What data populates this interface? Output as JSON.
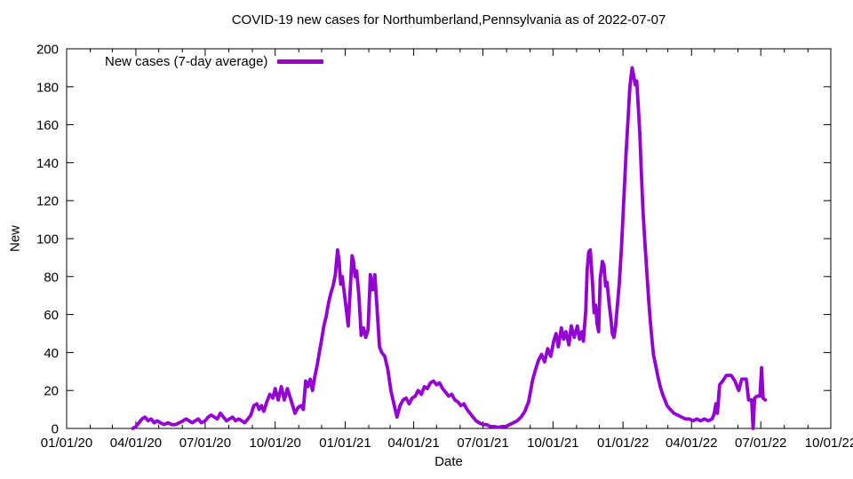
{
  "title": "COVID-19 new cases for Northumberland,Pennsylvania as of 2022-07-07",
  "legend": {
    "label": "New cases (7-day average)"
  },
  "axes": {
    "x_label": "Date",
    "y_label": "New"
  },
  "colors": {
    "line": "#9400d3",
    "axis": "#000000",
    "background": "#ffffff",
    "text": "#000000"
  },
  "chart_data": {
    "type": "line",
    "title": "COVID-19 new cases for Northumberland,Pennsylvania as of 2022-07-07",
    "xlabel": "Date",
    "ylabel": "New",
    "x_range": [
      "2020-01-01",
      "2022-10-01"
    ],
    "ylim": [
      0,
      200
    ],
    "y_tick_step": 20,
    "y_tick_labels": [
      "0",
      "20",
      "40",
      "60",
      "80",
      "100",
      "120",
      "140",
      "160",
      "180",
      "200"
    ],
    "x_major_ticks": [
      {
        "date": "2020-01-01",
        "label": "01/01/20"
      },
      {
        "date": "2020-04-01",
        "label": "04/01/20"
      },
      {
        "date": "2020-07-01",
        "label": "07/01/20"
      },
      {
        "date": "2020-10-01",
        "label": "10/01/20"
      },
      {
        "date": "2021-01-01",
        "label": "01/01/21"
      },
      {
        "date": "2021-04-01",
        "label": "04/01/21"
      },
      {
        "date": "2021-07-01",
        "label": "07/01/21"
      },
      {
        "date": "2021-10-01",
        "label": "10/01/21"
      },
      {
        "date": "2022-01-01",
        "label": "01/01/22"
      },
      {
        "date": "2022-04-01",
        "label": "04/01/22"
      },
      {
        "date": "2022-07-01",
        "label": "07/01/22"
      },
      {
        "date": "2022-10-01",
        "label": "10/01/22"
      }
    ],
    "x_minor_tick_interval": "month",
    "grid": false,
    "legend_position": "top-left-inside",
    "series": [
      {
        "name": "New cases (7-day average)",
        "color": "#9400d3",
        "points": [
          [
            "2020-03-28",
            0
          ],
          [
            "2020-04-01",
            1
          ],
          [
            "2020-04-05",
            3
          ],
          [
            "2020-04-09",
            5
          ],
          [
            "2020-04-13",
            6
          ],
          [
            "2020-04-17",
            4
          ],
          [
            "2020-04-21",
            5
          ],
          [
            "2020-04-25",
            3
          ],
          [
            "2020-04-29",
            4
          ],
          [
            "2020-05-03",
            3
          ],
          [
            "2020-05-08",
            2
          ],
          [
            "2020-05-13",
            3
          ],
          [
            "2020-05-18",
            2
          ],
          [
            "2020-05-23",
            2
          ],
          [
            "2020-05-28",
            3
          ],
          [
            "2020-06-02",
            4
          ],
          [
            "2020-06-06",
            5
          ],
          [
            "2020-06-10",
            4
          ],
          [
            "2020-06-14",
            3
          ],
          [
            "2020-06-18",
            4
          ],
          [
            "2020-06-22",
            5
          ],
          [
            "2020-06-26",
            3
          ],
          [
            "2020-07-01",
            4
          ],
          [
            "2020-07-05",
            6
          ],
          [
            "2020-07-09",
            7
          ],
          [
            "2020-07-13",
            6
          ],
          [
            "2020-07-17",
            5
          ],
          [
            "2020-07-21",
            8
          ],
          [
            "2020-07-25",
            6
          ],
          [
            "2020-07-29",
            4
          ],
          [
            "2020-08-02",
            5
          ],
          [
            "2020-08-06",
            6
          ],
          [
            "2020-08-10",
            4
          ],
          [
            "2020-08-14",
            5
          ],
          [
            "2020-08-18",
            4
          ],
          [
            "2020-08-22",
            3
          ],
          [
            "2020-08-26",
            5
          ],
          [
            "2020-08-30",
            7
          ],
          [
            "2020-09-03",
            12
          ],
          [
            "2020-09-07",
            13
          ],
          [
            "2020-09-10",
            10
          ],
          [
            "2020-09-13",
            12
          ],
          [
            "2020-09-16",
            9
          ],
          [
            "2020-09-20",
            14
          ],
          [
            "2020-09-24",
            18
          ],
          [
            "2020-09-28",
            16
          ],
          [
            "2020-10-01",
            21
          ],
          [
            "2020-10-05",
            15
          ],
          [
            "2020-10-09",
            22
          ],
          [
            "2020-10-13",
            15
          ],
          [
            "2020-10-17",
            21
          ],
          [
            "2020-10-21",
            16
          ],
          [
            "2020-10-24",
            12
          ],
          [
            "2020-10-27",
            8
          ],
          [
            "2020-10-31",
            11
          ],
          [
            "2020-11-04",
            12
          ],
          [
            "2020-11-07",
            10
          ],
          [
            "2020-11-10",
            25
          ],
          [
            "2020-11-13",
            22
          ],
          [
            "2020-11-16",
            26
          ],
          [
            "2020-11-19",
            20
          ],
          [
            "2020-11-22",
            27
          ],
          [
            "2020-11-25",
            33
          ],
          [
            "2020-11-28",
            40
          ],
          [
            "2020-12-01",
            47
          ],
          [
            "2020-12-04",
            54
          ],
          [
            "2020-12-07",
            59
          ],
          [
            "2020-12-10",
            66
          ],
          [
            "2020-12-13",
            71
          ],
          [
            "2020-12-16",
            75
          ],
          [
            "2020-12-19",
            81
          ],
          [
            "2020-12-22",
            94
          ],
          [
            "2020-12-24",
            88
          ],
          [
            "2020-12-26",
            76
          ],
          [
            "2020-12-28",
            80
          ],
          [
            "2020-12-31",
            71
          ],
          [
            "2021-01-02",
            64
          ],
          [
            "2021-01-05",
            54
          ],
          [
            "2021-01-08",
            76
          ],
          [
            "2021-01-10",
            91
          ],
          [
            "2021-01-12",
            88
          ],
          [
            "2021-01-14",
            80
          ],
          [
            "2021-01-16",
            83
          ],
          [
            "2021-01-19",
            70
          ],
          [
            "2021-01-22",
            49
          ],
          [
            "2021-01-25",
            53
          ],
          [
            "2021-01-28",
            48
          ],
          [
            "2021-01-31",
            52
          ],
          [
            "2021-02-03",
            81
          ],
          [
            "2021-02-06",
            73
          ],
          [
            "2021-02-09",
            81
          ],
          [
            "2021-02-12",
            62
          ],
          [
            "2021-02-15",
            43
          ],
          [
            "2021-02-18",
            40
          ],
          [
            "2021-02-22",
            38
          ],
          [
            "2021-02-26",
            31
          ],
          [
            "2021-03-02",
            20
          ],
          [
            "2021-03-06",
            13
          ],
          [
            "2021-03-10",
            6
          ],
          [
            "2021-03-14",
            12
          ],
          [
            "2021-03-18",
            15
          ],
          [
            "2021-03-22",
            16
          ],
          [
            "2021-03-26",
            13
          ],
          [
            "2021-03-30",
            16
          ],
          [
            "2021-04-03",
            17
          ],
          [
            "2021-04-07",
            20
          ],
          [
            "2021-04-11",
            18
          ],
          [
            "2021-04-15",
            22
          ],
          [
            "2021-04-19",
            21
          ],
          [
            "2021-04-23",
            24
          ],
          [
            "2021-04-27",
            25
          ],
          [
            "2021-05-01",
            23
          ],
          [
            "2021-05-05",
            24
          ],
          [
            "2021-05-09",
            21
          ],
          [
            "2021-05-13",
            19
          ],
          [
            "2021-05-17",
            17
          ],
          [
            "2021-05-21",
            18
          ],
          [
            "2021-05-25",
            15
          ],
          [
            "2021-05-29",
            14
          ],
          [
            "2021-06-02",
            12
          ],
          [
            "2021-06-06",
            13
          ],
          [
            "2021-06-10",
            10
          ],
          [
            "2021-06-14",
            8
          ],
          [
            "2021-06-18",
            6
          ],
          [
            "2021-06-22",
            4
          ],
          [
            "2021-06-26",
            3
          ],
          [
            "2021-07-01",
            2
          ],
          [
            "2021-07-06",
            2
          ],
          [
            "2021-07-11",
            1
          ],
          [
            "2021-07-16",
            1
          ],
          [
            "2021-07-21",
            0.5
          ],
          [
            "2021-07-26",
            1
          ],
          [
            "2021-07-31",
            1
          ],
          [
            "2021-08-05",
            2
          ],
          [
            "2021-08-10",
            3
          ],
          [
            "2021-08-15",
            4
          ],
          [
            "2021-08-20",
            6
          ],
          [
            "2021-08-25",
            9
          ],
          [
            "2021-08-30",
            14
          ],
          [
            "2021-09-04",
            25
          ],
          [
            "2021-09-08",
            31
          ],
          [
            "2021-09-12",
            36
          ],
          [
            "2021-09-16",
            39
          ],
          [
            "2021-09-20",
            35
          ],
          [
            "2021-09-24",
            42
          ],
          [
            "2021-09-28",
            38
          ],
          [
            "2021-10-02",
            46
          ],
          [
            "2021-10-05",
            50
          ],
          [
            "2021-10-08",
            43
          ],
          [
            "2021-10-12",
            53
          ],
          [
            "2021-10-15",
            47
          ],
          [
            "2021-10-18",
            51
          ],
          [
            "2021-10-22",
            44
          ],
          [
            "2021-10-25",
            54
          ],
          [
            "2021-10-29",
            48
          ],
          [
            "2021-11-02",
            54
          ],
          [
            "2021-11-05",
            47
          ],
          [
            "2021-11-08",
            51
          ],
          [
            "2021-11-10",
            46
          ],
          [
            "2021-11-13",
            62
          ],
          [
            "2021-11-15",
            84
          ],
          [
            "2021-11-17",
            93
          ],
          [
            "2021-11-19",
            94
          ],
          [
            "2021-11-22",
            76
          ],
          [
            "2021-11-24",
            61
          ],
          [
            "2021-11-26",
            65
          ],
          [
            "2021-11-28",
            55
          ],
          [
            "2021-11-30",
            51
          ],
          [
            "2021-12-02",
            79
          ],
          [
            "2021-12-05",
            88
          ],
          [
            "2021-12-07",
            86
          ],
          [
            "2021-12-09",
            75
          ],
          [
            "2021-12-11",
            77
          ],
          [
            "2021-12-14",
            65
          ],
          [
            "2021-12-16",
            58
          ],
          [
            "2021-12-18",
            50
          ],
          [
            "2021-12-20",
            48
          ],
          [
            "2021-12-22",
            53
          ],
          [
            "2021-12-24",
            62
          ],
          [
            "2021-12-27",
            76
          ],
          [
            "2021-12-30",
            95
          ],
          [
            "2022-01-02",
            120
          ],
          [
            "2022-01-05",
            145
          ],
          [
            "2022-01-08",
            166
          ],
          [
            "2022-01-10",
            180
          ],
          [
            "2022-01-13",
            190
          ],
          [
            "2022-01-15",
            186
          ],
          [
            "2022-01-17",
            181
          ],
          [
            "2022-01-19",
            183
          ],
          [
            "2022-01-21",
            170
          ],
          [
            "2022-01-23",
            156
          ],
          [
            "2022-01-25",
            136
          ],
          [
            "2022-01-27",
            117
          ],
          [
            "2022-01-29",
            103
          ],
          [
            "2022-01-31",
            90
          ],
          [
            "2022-02-02",
            78
          ],
          [
            "2022-02-04",
            66
          ],
          [
            "2022-02-06",
            56
          ],
          [
            "2022-02-08",
            47
          ],
          [
            "2022-02-10",
            39
          ],
          [
            "2022-02-13",
            33
          ],
          [
            "2022-02-16",
            27
          ],
          [
            "2022-02-19",
            22
          ],
          [
            "2022-02-22",
            18
          ],
          [
            "2022-02-25",
            15
          ],
          [
            "2022-02-28",
            12
          ],
          [
            "2022-03-04",
            10
          ],
          [
            "2022-03-09",
            8
          ],
          [
            "2022-03-14",
            7
          ],
          [
            "2022-03-19",
            6
          ],
          [
            "2022-03-24",
            5
          ],
          [
            "2022-03-29",
            5
          ],
          [
            "2022-04-03",
            4
          ],
          [
            "2022-04-08",
            5
          ],
          [
            "2022-04-13",
            4
          ],
          [
            "2022-04-18",
            5
          ],
          [
            "2022-04-23",
            4
          ],
          [
            "2022-04-28",
            5
          ],
          [
            "2022-05-01",
            8
          ],
          [
            "2022-05-03",
            13
          ],
          [
            "2022-05-05",
            8
          ],
          [
            "2022-05-08",
            23
          ],
          [
            "2022-05-12",
            25
          ],
          [
            "2022-05-17",
            28
          ],
          [
            "2022-05-23",
            28
          ],
          [
            "2022-05-28",
            25
          ],
          [
            "2022-06-02",
            20
          ],
          [
            "2022-06-06",
            26
          ],
          [
            "2022-06-12",
            26
          ],
          [
            "2022-06-15",
            15
          ],
          [
            "2022-06-19",
            15
          ],
          [
            "2022-06-21",
            0
          ],
          [
            "2022-06-23",
            16
          ],
          [
            "2022-06-26",
            17
          ],
          [
            "2022-06-30",
            17
          ],
          [
            "2022-07-02",
            32
          ],
          [
            "2022-07-04",
            16
          ],
          [
            "2022-07-07",
            15
          ]
        ]
      }
    ]
  }
}
